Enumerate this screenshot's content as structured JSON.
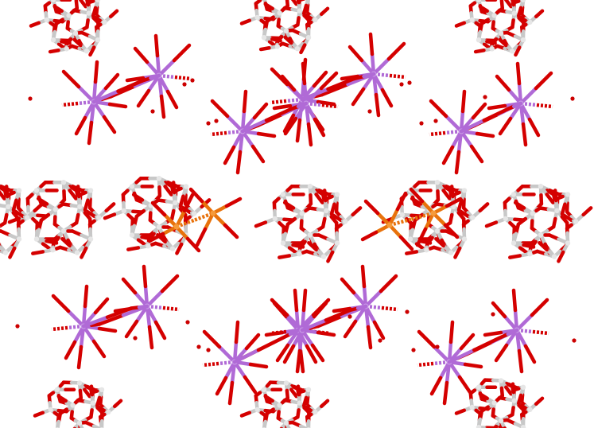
{
  "scene": {
    "background": "#ffffff",
    "description_visible_text": ""
  },
  "elements": {
    "oxygen": {
      "color": "#d40000",
      "color_dark": "#9e0000"
    },
    "metal": {
      "color": "#c8c8c8",
      "color_light": "#e6e6e6"
    },
    "alkali": {
      "color": "#b06ad6",
      "color_light": "#c99ae6"
    },
    "bridge": {
      "color": "#e8720c",
      "color_light": "#f59a3a"
    },
    "water": {
      "color": "#cc0000"
    }
  }
}
